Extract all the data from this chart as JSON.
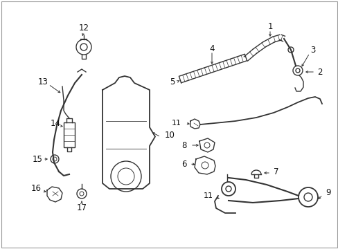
{
  "bg_color": "#ffffff",
  "line_color": "#333333",
  "label_color": "#111111",
  "fig_width": 4.89,
  "fig_height": 3.6,
  "dpi": 100
}
